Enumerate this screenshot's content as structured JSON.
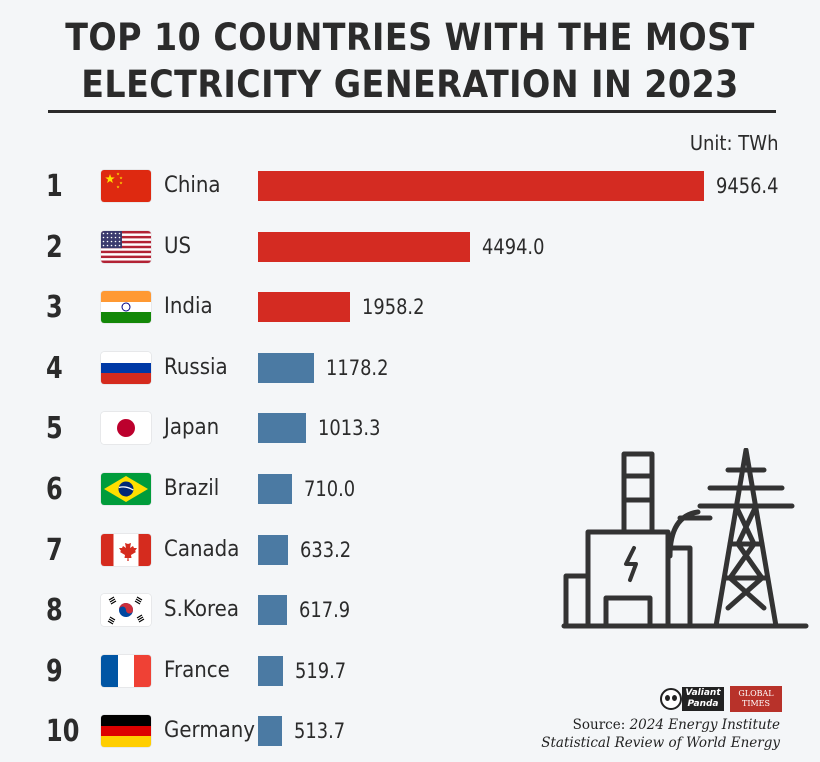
{
  "title_line1": "TOP 10 COUNTRIES WITH THE MOST",
  "title_line2": "ELECTRICITY GENERATION IN 2023",
  "unit": "Unit: TWh",
  "source_prefix": "Source:",
  "source_italic": "2024 Energy Institute",
  "source_line2": "Statistical Review of World Energy",
  "logos": {
    "panda": "Valiant Panda",
    "gt": "GLOBAL TIMES"
  },
  "colors": {
    "top3": "#d42b22",
    "rest": "#4b7aa3",
    "text": "#2b2b2b"
  },
  "chart_data": {
    "type": "bar",
    "orientation": "horizontal",
    "title": "TOP 10 COUNTRIES WITH THE MOST ELECTRICITY GENERATION IN 2023",
    "unit": "TWh",
    "categories": [
      "China",
      "US",
      "India",
      "Russia",
      "Japan",
      "Brazil",
      "Canada",
      "S.Korea",
      "France",
      "Germany"
    ],
    "ranks": [
      "1",
      "2",
      "3",
      "4",
      "5",
      "6",
      "7",
      "8",
      "9",
      "10"
    ],
    "values": [
      9456.4,
      4494.0,
      1958.2,
      1178.2,
      1013.3,
      710.0,
      633.2,
      617.9,
      519.7,
      513.7
    ],
    "value_labels": [
      "9456.4",
      "4494.0",
      "1958.2",
      "1178.2",
      "1013.3",
      "710.0",
      "633.2",
      "617.9",
      "519.7",
      "513.7"
    ],
    "flag_icons": [
      "china-flag-icon",
      "us-flag-icon",
      "india-flag-icon",
      "russia-flag-icon",
      "japan-flag-icon",
      "brazil-flag-icon",
      "canada-flag-icon",
      "south-korea-flag-icon",
      "france-flag-icon",
      "germany-flag-icon"
    ],
    "bar_colors": [
      "#d42b22",
      "#d42b22",
      "#d42b22",
      "#4b7aa3",
      "#4b7aa3",
      "#4b7aa3",
      "#4b7aa3",
      "#4b7aa3",
      "#4b7aa3",
      "#4b7aa3"
    ],
    "xlim": [
      0,
      9456.4
    ],
    "grid": false,
    "legend": "none"
  }
}
